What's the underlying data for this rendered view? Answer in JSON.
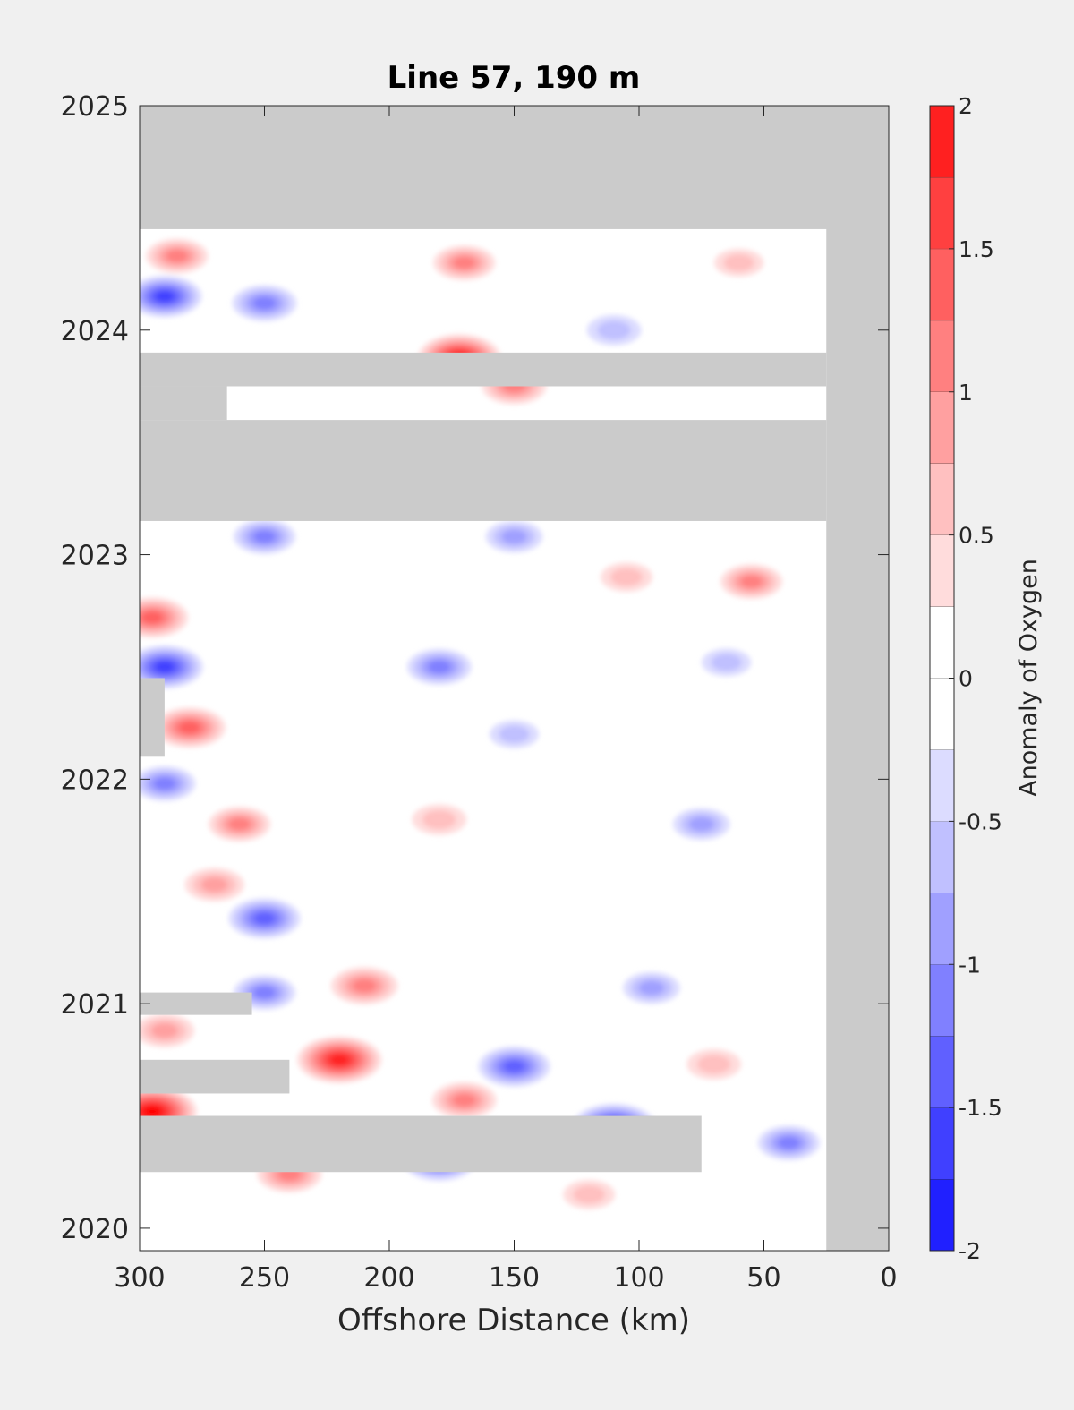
{
  "chart_data": {
    "type": "heatmap",
    "title": "Line 57, 190 m",
    "xlabel": "Offshore Distance (km)",
    "ylabel": "",
    "x_axis": {
      "ticks": [
        300,
        250,
        200,
        150,
        100,
        50,
        0
      ],
      "range": [
        300,
        0
      ],
      "reversed": true
    },
    "y_axis": {
      "ticks": [
        2025,
        2024,
        2023,
        2022,
        2021,
        2020
      ],
      "range": [
        2019.9,
        2025
      ]
    },
    "colorbar": {
      "label": "Anomaly of Oxygen",
      "ticks": [
        "2",
        "1.5",
        "1",
        "0.5",
        "0",
        "-0.5",
        "-1",
        "-1.5",
        "-2"
      ],
      "range": [
        -2,
        2
      ],
      "levels": [
        -2,
        -1.75,
        -1.5,
        -1.25,
        -1,
        -0.75,
        -0.5,
        -0.25,
        0.25,
        0.5,
        0.75,
        1,
        1.25,
        1.5,
        1.75,
        2
      ],
      "colors": [
        "#0000ff",
        "#2020ff",
        "#4040ff",
        "#6060ff",
        "#8080ff",
        "#a0a0ff",
        "#c0c0ff",
        "#dcdcff",
        "#ffffff",
        "#ffdcdc",
        "#ffc0c0",
        "#ffa0a0",
        "#ff8080",
        "#ff6060",
        "#ff4040",
        "#ff2020",
        "#ff0000"
      ]
    },
    "colors": {
      "missing": "#cbcbcb",
      "background": "#f0f0f0",
      "positive": "#ff0000",
      "negative": "#0000ff"
    },
    "missing_data_bands": [
      {
        "x": [
          300,
          0
        ],
        "y": [
          2024.45,
          2025
        ]
      },
      {
        "x": [
          25,
          0
        ],
        "y": [
          2019.9,
          2025
        ]
      },
      {
        "x": [
          300,
          25
        ],
        "y": [
          2023.15,
          2023.6
        ]
      },
      {
        "x": [
          300,
          25
        ],
        "y": [
          2023.75,
          2023.9
        ]
      },
      {
        "x": [
          300,
          265
        ],
        "y": [
          2023.6,
          2023.75
        ]
      },
      {
        "x": [
          300,
          290
        ],
        "y": [
          2022.1,
          2022.45
        ]
      },
      {
        "x": [
          300,
          255
        ],
        "y": [
          2020.95,
          2021.05
        ]
      },
      {
        "x": [
          300,
          240
        ],
        "y": [
          2020.6,
          2020.75
        ]
      },
      {
        "x": [
          300,
          75
        ],
        "y": [
          2020.25,
          2020.5
        ]
      }
    ],
    "anomaly_features": [
      {
        "x": 285,
        "y": 2024.33,
        "value": 0.9
      },
      {
        "x": 170,
        "y": 2024.3,
        "value": 0.9
      },
      {
        "x": 60,
        "y": 2024.3,
        "value": 0.4
      },
      {
        "x": 290,
        "y": 2024.15,
        "value": -1.4
      },
      {
        "x": 250,
        "y": 2024.12,
        "value": -1.0
      },
      {
        "x": 110,
        "y": 2024.0,
        "value": -0.6
      },
      {
        "x": 172,
        "y": 2023.88,
        "value": 1.7
      },
      {
        "x": 150,
        "y": 2023.75,
        "value": 1.0
      },
      {
        "x": 250,
        "y": 2023.08,
        "value": -0.9
      },
      {
        "x": 150,
        "y": 2023.08,
        "value": -0.7
      },
      {
        "x": 105,
        "y": 2022.9,
        "value": 0.5
      },
      {
        "x": 55,
        "y": 2022.88,
        "value": 0.9
      },
      {
        "x": 295,
        "y": 2022.72,
        "value": 1.3
      },
      {
        "x": 290,
        "y": 2022.5,
        "value": -1.5
      },
      {
        "x": 180,
        "y": 2022.5,
        "value": -1.0
      },
      {
        "x": 65,
        "y": 2022.52,
        "value": -0.4
      },
      {
        "x": 280,
        "y": 2022.23,
        "value": 1.3
      },
      {
        "x": 150,
        "y": 2022.2,
        "value": -0.4
      },
      {
        "x": 290,
        "y": 2021.98,
        "value": -0.9
      },
      {
        "x": 260,
        "y": 2021.8,
        "value": 0.9
      },
      {
        "x": 180,
        "y": 2021.82,
        "value": 0.6
      },
      {
        "x": 75,
        "y": 2021.8,
        "value": -0.7
      },
      {
        "x": 270,
        "y": 2021.53,
        "value": 0.8
      },
      {
        "x": 250,
        "y": 2021.38,
        "value": -1.3
      },
      {
        "x": 210,
        "y": 2021.08,
        "value": 1.1
      },
      {
        "x": 95,
        "y": 2021.07,
        "value": -0.7
      },
      {
        "x": 250,
        "y": 2021.05,
        "value": -0.9
      },
      {
        "x": 290,
        "y": 2020.88,
        "value": 0.8
      },
      {
        "x": 220,
        "y": 2020.75,
        "value": 1.8
      },
      {
        "x": 150,
        "y": 2020.72,
        "value": -1.3
      },
      {
        "x": 70,
        "y": 2020.73,
        "value": 0.6
      },
      {
        "x": 170,
        "y": 2020.57,
        "value": 1.0
      },
      {
        "x": 295,
        "y": 2020.52,
        "value": 2.0
      },
      {
        "x": 110,
        "y": 2020.45,
        "value": -1.8
      },
      {
        "x": 40,
        "y": 2020.38,
        "value": -0.9
      },
      {
        "x": 180,
        "y": 2020.3,
        "value": -1.3
      },
      {
        "x": 240,
        "y": 2020.24,
        "value": 1.0
      },
      {
        "x": 120,
        "y": 2020.15,
        "value": 0.5
      }
    ]
  }
}
